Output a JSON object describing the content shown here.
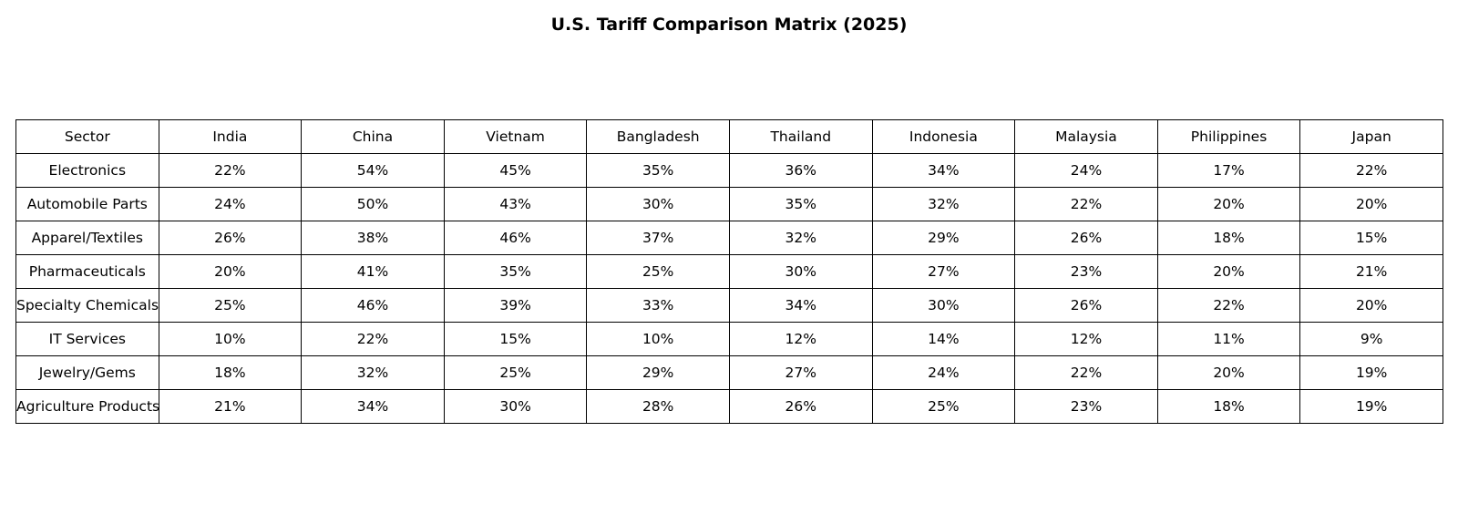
{
  "chart_data": {
    "type": "table",
    "title": "U.S. Tariff Comparison Matrix (2025)",
    "columns": [
      "Sector",
      "India",
      "China",
      "Vietnam",
      "Bangladesh",
      "Thailand",
      "Indonesia",
      "Malaysia",
      "Philippines",
      "Japan"
    ],
    "rows": [
      {
        "sector": "Electronics",
        "values": [
          "22%",
          "54%",
          "45%",
          "35%",
          "36%",
          "34%",
          "24%",
          "17%",
          "22%"
        ]
      },
      {
        "sector": "Automobile Parts",
        "values": [
          "24%",
          "50%",
          "43%",
          "30%",
          "35%",
          "32%",
          "22%",
          "20%",
          "20%"
        ]
      },
      {
        "sector": "Apparel/Textiles",
        "values": [
          "26%",
          "38%",
          "46%",
          "37%",
          "32%",
          "29%",
          "26%",
          "18%",
          "15%"
        ]
      },
      {
        "sector": "Pharmaceuticals",
        "values": [
          "20%",
          "41%",
          "35%",
          "25%",
          "30%",
          "27%",
          "23%",
          "20%",
          "21%"
        ]
      },
      {
        "sector": "Specialty Chemicals",
        "values": [
          "25%",
          "46%",
          "39%",
          "33%",
          "34%",
          "30%",
          "26%",
          "22%",
          "20%"
        ]
      },
      {
        "sector": "IT Services",
        "values": [
          "10%",
          "22%",
          "15%",
          "10%",
          "12%",
          "14%",
          "12%",
          "11%",
          "9%"
        ]
      },
      {
        "sector": "Jewelry/Gems",
        "values": [
          "18%",
          "32%",
          "25%",
          "29%",
          "27%",
          "24%",
          "22%",
          "20%",
          "19%"
        ]
      },
      {
        "sector": "Agriculture Products",
        "values": [
          "21%",
          "34%",
          "30%",
          "28%",
          "26%",
          "25%",
          "23%",
          "18%",
          "19%"
        ]
      }
    ]
  }
}
